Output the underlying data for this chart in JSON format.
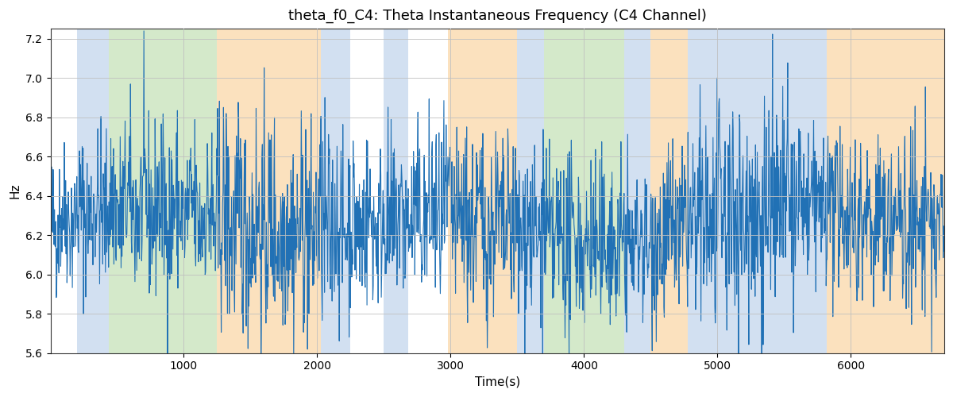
{
  "title": "theta_f0_C4: Theta Instantaneous Frequency (C4 Channel)",
  "xlabel": "Time(s)",
  "ylabel": "Hz",
  "ylim": [
    5.6,
    7.25
  ],
  "xlim": [
    0,
    6700
  ],
  "line_color": "#2171b5",
  "line_width": 0.8,
  "bg_color": "#ffffff",
  "grid_color": "#c0c0c0",
  "title_fontsize": 13,
  "label_fontsize": 11,
  "bands": [
    {
      "start": 200,
      "end": 440,
      "color": "#adc8e6",
      "alpha": 0.55
    },
    {
      "start": 440,
      "end": 1250,
      "color": "#b2d8a0",
      "alpha": 0.55
    },
    {
      "start": 1250,
      "end": 2030,
      "color": "#f9c98a",
      "alpha": 0.55
    },
    {
      "start": 2030,
      "end": 2250,
      "color": "#adc8e6",
      "alpha": 0.55
    },
    {
      "start": 2500,
      "end": 2680,
      "color": "#adc8e6",
      "alpha": 0.55
    },
    {
      "start": 2980,
      "end": 3500,
      "color": "#f9c98a",
      "alpha": 0.55
    },
    {
      "start": 3500,
      "end": 3700,
      "color": "#adc8e6",
      "alpha": 0.55
    },
    {
      "start": 3700,
      "end": 4300,
      "color": "#b2d8a0",
      "alpha": 0.55
    },
    {
      "start": 4300,
      "end": 4500,
      "color": "#adc8e6",
      "alpha": 0.55
    },
    {
      "start": 4500,
      "end": 4780,
      "color": "#f9c98a",
      "alpha": 0.55
    },
    {
      "start": 4780,
      "end": 5820,
      "color": "#adc8e6",
      "alpha": 0.55
    },
    {
      "start": 5820,
      "end": 6100,
      "color": "#f9c98a",
      "alpha": 0.55
    },
    {
      "start": 6100,
      "end": 6700,
      "color": "#f9c98a",
      "alpha": 0.55
    }
  ],
  "seed": 42,
  "n_points": 2000,
  "t_start": 0,
  "t_end": 6700,
  "mean_freq": 6.35,
  "noise_std": 0.22
}
